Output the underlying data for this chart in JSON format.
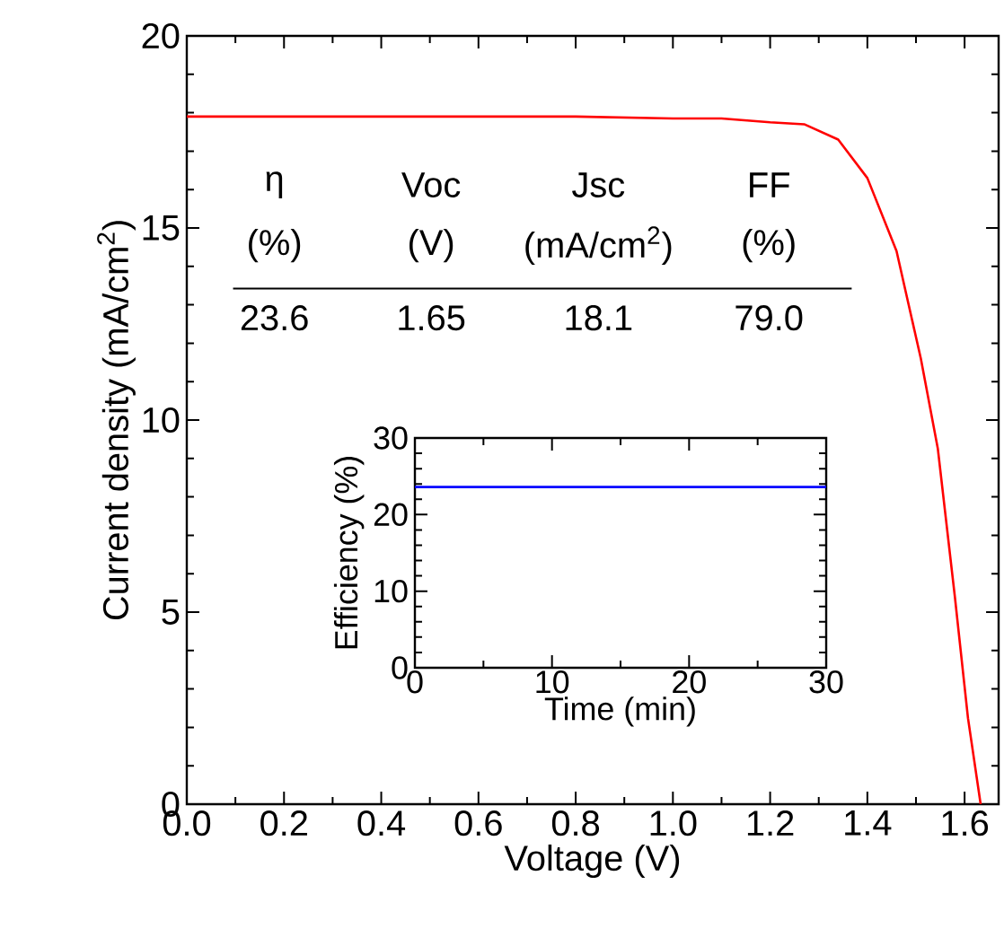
{
  "chart_data": [
    {
      "type": "line",
      "xlabel": "Voltage (V)",
      "ylabel": "Current density (mA/cm$^{2}$)",
      "xlim": [
        0,
        1.67
      ],
      "ylim": [
        0,
        20
      ],
      "xticks": [
        {
          "value": 0,
          "label": "0.0"
        },
        0.2,
        0.4,
        0.6,
        0.8,
        {
          "value": 1,
          "label": "1.0"
        },
        1.2,
        1.4,
        1.6
      ],
      "yticks": [
        0,
        5,
        10,
        15,
        20
      ],
      "x": [
        0,
        0.2,
        0.4,
        0.6,
        0.8,
        1.0,
        1.1,
        1.2,
        1.27,
        1.34,
        1.4,
        1.46,
        1.51,
        1.545,
        1.58,
        1.607,
        1.633
      ],
      "series": [
        {
          "color": "#ff0000",
          "values": [
            17.9,
            17.9,
            17.9,
            17.9,
            17.9,
            17.85,
            17.85,
            17.75,
            17.7,
            17.3,
            16.3,
            14.4,
            11.6,
            9.25,
            5.4,
            2.24,
            0
          ]
        }
      ],
      "annotations": [
        "η",
        "(%)",
        "Voc",
        "(V)",
        "Jsc",
        "(mA/cm$^{2}$)",
        "FF",
        "(%)",
        "23.6",
        "1.65",
        "18.1",
        "79.0"
      ]
    },
    {
      "type": "line",
      "xlabel": "Time (min)",
      "ylabel": "Efficiency (%)",
      "xlim": [
        0,
        30
      ],
      "ylim": [
        0,
        30
      ],
      "xticks": [
        0,
        10,
        20,
        30
      ],
      "yticks": [
        0,
        10,
        20,
        30
      ],
      "x": [
        0,
        30
      ],
      "series": [
        {
          "color": "#0000ff",
          "values": [
            23.6,
            23.6
          ]
        }
      ]
    }
  ]
}
